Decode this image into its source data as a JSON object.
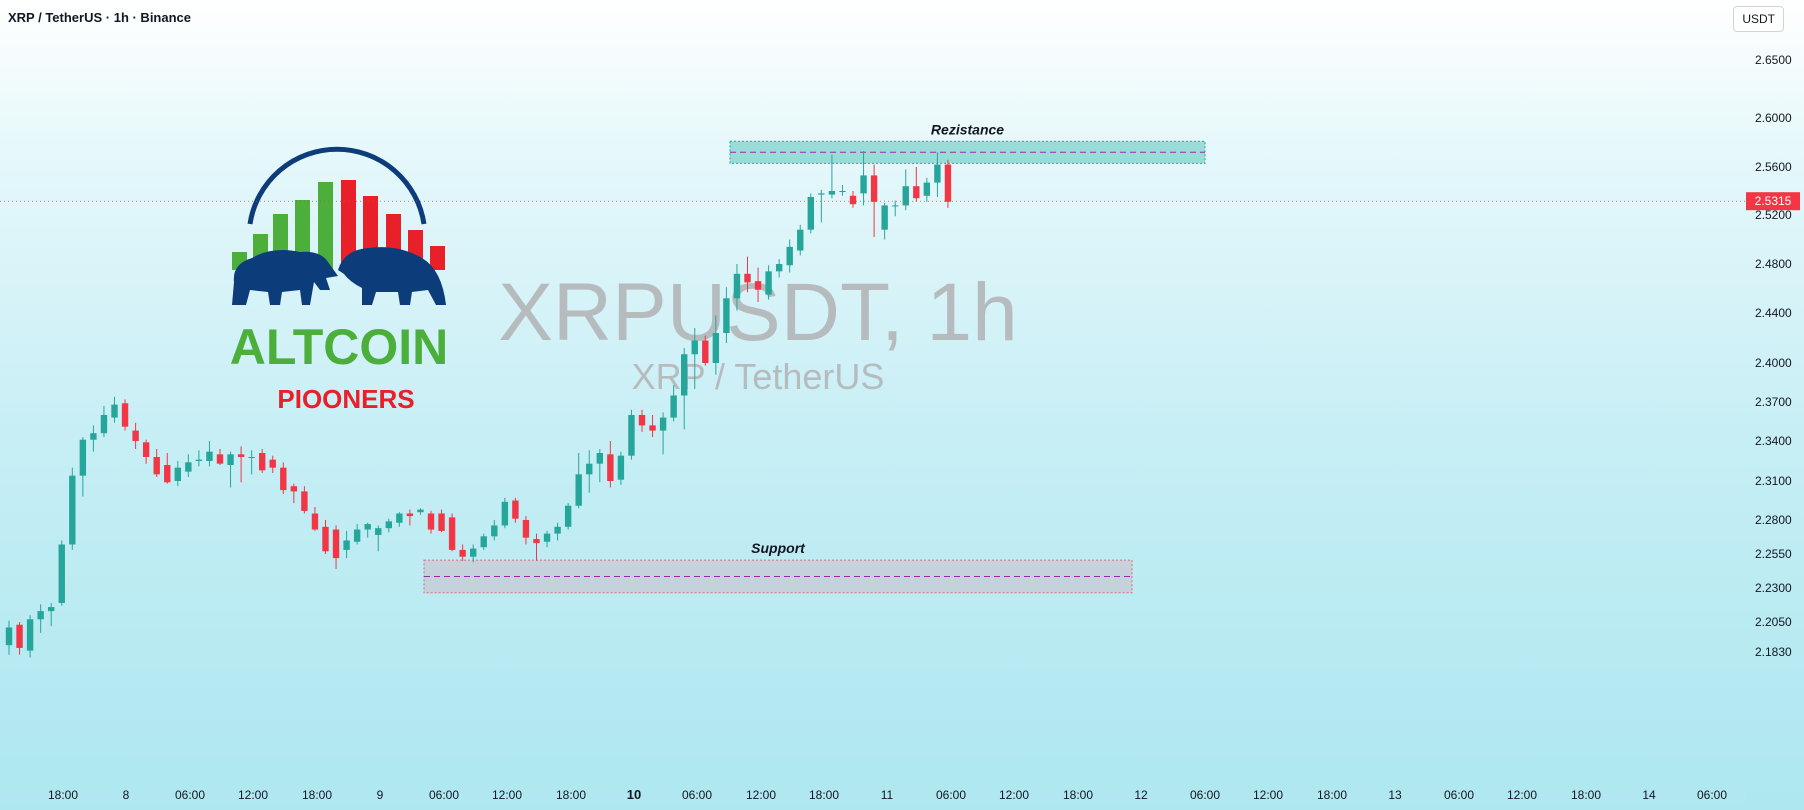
{
  "header": {
    "symbol_line": "XRP / TetherUS · 1h · Binance",
    "currency": "USDT"
  },
  "watermark": {
    "main": "XRPUSDT, 1h",
    "sub": "XRP / TetherUS"
  },
  "logo": {
    "line1": "ALTCOIN",
    "line2": "PIOONERS"
  },
  "colors": {
    "up": "#26a69a",
    "down": "#f23645",
    "logo_green": "#4caf3c",
    "logo_red": "#e8202a",
    "logo_navy": "#0d3c7a"
  },
  "chart_data": {
    "type": "candlestick",
    "y_ticks": [
      "2.6500",
      "2.6000",
      "2.5600",
      "2.5200",
      "2.4800",
      "2.4400",
      "2.4000",
      "2.3700",
      "2.3400",
      "2.3100",
      "2.2800",
      "2.2550",
      "2.2300",
      "2.2050",
      "2.1830"
    ],
    "x_ticks": [
      "18:00",
      "8",
      "06:00",
      "12:00",
      "18:00",
      "9",
      "06:00",
      "12:00",
      "18:00",
      "10",
      "06:00",
      "12:00",
      "18:00",
      "11",
      "06:00",
      "12:00",
      "18:00",
      "12",
      "06:00",
      "12:00",
      "18:00",
      "13",
      "06:00",
      "12:00",
      "18:00",
      "14",
      "06:00"
    ],
    "last_price": "2.5315",
    "zones": [
      {
        "label": "Rezistance",
        "low": 2.563,
        "high": 2.581
      },
      {
        "label": "Support",
        "low": 2.2265,
        "high": 2.2505
      }
    ],
    "candles": [
      {
        "o": 2.188,
        "h": 2.206,
        "l": 2.181,
        "c": 2.201
      },
      {
        "o": 2.203,
        "h": 2.205,
        "l": 2.181,
        "c": 2.186
      },
      {
        "o": 2.184,
        "h": 2.21,
        "l": 2.179,
        "c": 2.207
      },
      {
        "o": 2.207,
        "h": 2.218,
        "l": 2.197,
        "c": 2.213
      },
      {
        "o": 2.213,
        "h": 2.219,
        "l": 2.202,
        "c": 2.216
      },
      {
        "o": 2.219,
        "h": 2.265,
        "l": 2.217,
        "c": 2.262
      },
      {
        "o": 2.262,
        "h": 2.32,
        "l": 2.258,
        "c": 2.314
      },
      {
        "o": 2.314,
        "h": 2.343,
        "l": 2.298,
        "c": 2.341
      },
      {
        "o": 2.341,
        "h": 2.352,
        "l": 2.332,
        "c": 2.346
      },
      {
        "o": 2.346,
        "h": 2.367,
        "l": 2.343,
        "c": 2.36
      },
      {
        "o": 2.358,
        "h": 2.374,
        "l": 2.354,
        "c": 2.368
      },
      {
        "o": 2.369,
        "h": 2.372,
        "l": 2.348,
        "c": 2.351
      },
      {
        "o": 2.348,
        "h": 2.354,
        "l": 2.334,
        "c": 2.34
      },
      {
        "o": 2.339,
        "h": 2.341,
        "l": 2.323,
        "c": 2.328
      },
      {
        "o": 2.328,
        "h": 2.334,
        "l": 2.313,
        "c": 2.315
      },
      {
        "o": 2.322,
        "h": 2.331,
        "l": 2.308,
        "c": 2.309
      },
      {
        "o": 2.31,
        "h": 2.325,
        "l": 2.306,
        "c": 2.32
      },
      {
        "o": 2.317,
        "h": 2.33,
        "l": 2.313,
        "c": 2.324
      },
      {
        "o": 2.325,
        "h": 2.333,
        "l": 2.321,
        "c": 2.326
      },
      {
        "o": 2.325,
        "h": 2.34,
        "l": 2.321,
        "c": 2.332
      },
      {
        "o": 2.33,
        "h": 2.334,
        "l": 2.322,
        "c": 2.323
      },
      {
        "o": 2.322,
        "h": 2.332,
        "l": 2.305,
        "c": 2.33
      },
      {
        "o": 2.33,
        "h": 2.336,
        "l": 2.309,
        "c": 2.328
      },
      {
        "o": 2.328,
        "h": 2.333,
        "l": 2.315,
        "c": 2.328
      },
      {
        "o": 2.331,
        "h": 2.334,
        "l": 2.316,
        "c": 2.318
      },
      {
        "o": 2.326,
        "h": 2.329,
        "l": 2.316,
        "c": 2.32
      },
      {
        "o": 2.32,
        "h": 2.324,
        "l": 2.3,
        "c": 2.303
      },
      {
        "o": 2.306,
        "h": 2.308,
        "l": 2.293,
        "c": 2.302
      },
      {
        "o": 2.302,
        "h": 2.306,
        "l": 2.285,
        "c": 2.287
      },
      {
        "o": 2.285,
        "h": 2.29,
        "l": 2.272,
        "c": 2.273
      },
      {
        "o": 2.275,
        "h": 2.28,
        "l": 2.255,
        "c": 2.257
      },
      {
        "o": 2.273,
        "h": 2.276,
        "l": 2.244,
        "c": 2.252
      },
      {
        "o": 2.258,
        "h": 2.272,
        "l": 2.252,
        "c": 2.265
      },
      {
        "o": 2.264,
        "h": 2.277,
        "l": 2.262,
        "c": 2.273
      },
      {
        "o": 2.273,
        "h": 2.278,
        "l": 2.267,
        "c": 2.277
      },
      {
        "o": 2.269,
        "h": 2.276,
        "l": 2.257,
        "c": 2.274
      },
      {
        "o": 2.274,
        "h": 2.281,
        "l": 2.271,
        "c": 2.279
      },
      {
        "o": 2.278,
        "h": 2.286,
        "l": 2.275,
        "c": 2.285
      },
      {
        "o": 2.285,
        "h": 2.288,
        "l": 2.276,
        "c": 2.283
      },
      {
        "o": 2.286,
        "h": 2.289,
        "l": 2.284,
        "c": 2.288
      },
      {
        "o": 2.285,
        "h": 2.287,
        "l": 2.27,
        "c": 2.273
      },
      {
        "o": 2.285,
        "h": 2.288,
        "l": 2.271,
        "c": 2.272
      },
      {
        "o": 2.282,
        "h": 2.285,
        "l": 2.257,
        "c": 2.258
      },
      {
        "o": 2.258,
        "h": 2.262,
        "l": 2.25,
        "c": 2.253
      },
      {
        "o": 2.253,
        "h": 2.262,
        "l": 2.249,
        "c": 2.259
      },
      {
        "o": 2.26,
        "h": 2.27,
        "l": 2.258,
        "c": 2.268
      },
      {
        "o": 2.268,
        "h": 2.28,
        "l": 2.265,
        "c": 2.276
      },
      {
        "o": 2.276,
        "h": 2.297,
        "l": 2.274,
        "c": 2.294
      },
      {
        "o": 2.295,
        "h": 2.297,
        "l": 2.278,
        "c": 2.281
      },
      {
        "o": 2.28,
        "h": 2.283,
        "l": 2.262,
        "c": 2.267
      },
      {
        "o": 2.266,
        "h": 2.27,
        "l": 2.25,
        "c": 2.263
      },
      {
        "o": 2.264,
        "h": 2.272,
        "l": 2.26,
        "c": 2.27
      },
      {
        "o": 2.27,
        "h": 2.278,
        "l": 2.265,
        "c": 2.275
      },
      {
        "o": 2.275,
        "h": 2.293,
        "l": 2.273,
        "c": 2.291
      },
      {
        "o": 2.291,
        "h": 2.331,
        "l": 2.289,
        "c": 2.315
      },
      {
        "o": 2.315,
        "h": 2.333,
        "l": 2.301,
        "c": 2.323
      },
      {
        "o": 2.323,
        "h": 2.334,
        "l": 2.309,
        "c": 2.331
      },
      {
        "o": 2.33,
        "h": 2.34,
        "l": 2.305,
        "c": 2.31
      },
      {
        "o": 2.311,
        "h": 2.332,
        "l": 2.307,
        "c": 2.329
      },
      {
        "o": 2.329,
        "h": 2.364,
        "l": 2.326,
        "c": 2.36
      },
      {
        "o": 2.36,
        "h": 2.364,
        "l": 2.347,
        "c": 2.352
      },
      {
        "o": 2.352,
        "h": 2.36,
        "l": 2.343,
        "c": 2.348
      },
      {
        "o": 2.348,
        "h": 2.362,
        "l": 2.33,
        "c": 2.358
      },
      {
        "o": 2.358,
        "h": 2.383,
        "l": 2.355,
        "c": 2.375
      },
      {
        "o": 2.375,
        "h": 2.412,
        "l": 2.349,
        "c": 2.407
      },
      {
        "o": 2.407,
        "h": 2.428,
        "l": 2.38,
        "c": 2.418
      },
      {
        "o": 2.418,
        "h": 2.422,
        "l": 2.398,
        "c": 2.4
      },
      {
        "o": 2.4,
        "h": 2.438,
        "l": 2.391,
        "c": 2.424
      },
      {
        "o": 2.424,
        "h": 2.461,
        "l": 2.416,
        "c": 2.452
      },
      {
        "o": 2.452,
        "h": 2.48,
        "l": 2.442,
        "c": 2.472
      },
      {
        "o": 2.472,
        "h": 2.486,
        "l": 2.457,
        "c": 2.465
      },
      {
        "o": 2.466,
        "h": 2.477,
        "l": 2.449,
        "c": 2.459
      },
      {
        "o": 2.455,
        "h": 2.479,
        "l": 2.451,
        "c": 2.474
      },
      {
        "o": 2.474,
        "h": 2.484,
        "l": 2.469,
        "c": 2.48
      },
      {
        "o": 2.479,
        "h": 2.5,
        "l": 2.473,
        "c": 2.494
      },
      {
        "o": 2.491,
        "h": 2.512,
        "l": 2.487,
        "c": 2.508
      },
      {
        "o": 2.508,
        "h": 2.538,
        "l": 2.505,
        "c": 2.535
      },
      {
        "o": 2.537,
        "h": 2.541,
        "l": 2.514,
        "c": 2.538
      },
      {
        "o": 2.537,
        "h": 2.57,
        "l": 2.534,
        "c": 2.54
      },
      {
        "o": 2.54,
        "h": 2.545,
        "l": 2.536,
        "c": 2.54
      },
      {
        "o": 2.536,
        "h": 2.54,
        "l": 2.526,
        "c": 2.529
      },
      {
        "o": 2.538,
        "h": 2.573,
        "l": 2.528,
        "c": 2.553
      },
      {
        "o": 2.553,
        "h": 2.562,
        "l": 2.502,
        "c": 2.531
      },
      {
        "o": 2.508,
        "h": 2.53,
        "l": 2.5,
        "c": 2.528
      },
      {
        "o": 2.528,
        "h": 2.532,
        "l": 2.519,
        "c": 2.528
      },
      {
        "o": 2.528,
        "h": 2.558,
        "l": 2.524,
        "c": 2.544
      },
      {
        "o": 2.544,
        "h": 2.56,
        "l": 2.531,
        "c": 2.534
      },
      {
        "o": 2.536,
        "h": 2.551,
        "l": 2.531,
        "c": 2.547
      },
      {
        "o": 2.547,
        "h": 2.572,
        "l": 2.535,
        "c": 2.562
      },
      {
        "o": 2.562,
        "h": 2.566,
        "l": 2.526,
        "c": 2.531
      }
    ]
  }
}
